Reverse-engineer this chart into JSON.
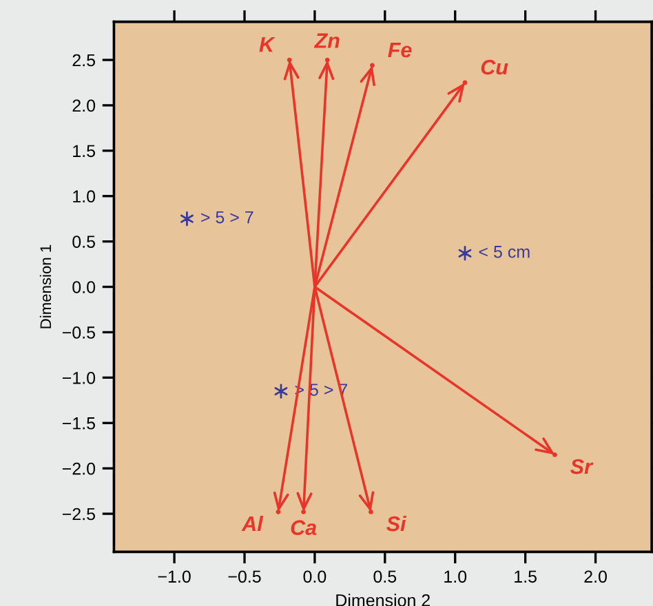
{
  "chart_data": {
    "type": "scatter",
    "xlabel": "Dimension 2",
    "ylabel": "Dimension 1",
    "xlim": [
      -1.43,
      2.4
    ],
    "ylim": [
      -2.92,
      2.92
    ],
    "xticks": [
      {
        "value": -1.0,
        "label": "−1.0"
      },
      {
        "value": -0.5,
        "label": "−0.5"
      },
      {
        "value": 0,
        "label": "0.0"
      },
      0.5,
      {
        "value": 1,
        "label": "1.0"
      },
      1.5,
      {
        "value": 2,
        "label": "2.0"
      }
    ],
    "yticks": [
      {
        "value": -2.5,
        "label": "−2.5"
      },
      {
        "value": -2.0,
        "label": "−2.0"
      },
      {
        "value": -1.5,
        "label": "−1.5"
      },
      {
        "value": -1.0,
        "label": "−1.0"
      },
      {
        "value": -0.5,
        "label": "−0.5"
      },
      {
        "value": 0,
        "label": "0.0"
      },
      0.5,
      {
        "value": 1,
        "label": "1.0"
      },
      1.5,
      {
        "value": 2,
        "label": "2.0"
      },
      2.5
    ],
    "marker": "cross",
    "series": [
      {
        "name": "> 5 > 7",
        "color": "#3a3a9a",
        "x": [
          -0.91
        ],
        "values": [
          0.75
        ]
      },
      {
        "name": "< 5 cm",
        "color": "#3a3a9a",
        "x": [
          1.07
        ],
        "values": [
          0.37
        ]
      },
      {
        "name": "> 5 > 7",
        "color": "#3a3a9a",
        "x": [
          -0.24
        ],
        "values": [
          -1.15
        ]
      },
      {
        "line_style": "solid",
        "marker": "circle",
        "color": "#e8352a",
        "x": [
          -0.18,
          0.09,
          0.41,
          1.07,
          1.71,
          0.4,
          -0.26,
          -0.08
        ],
        "values": [
          2.5,
          2.5,
          2.44,
          2.25,
          -1.85,
          -2.48,
          -2.48,
          -2.48
        ]
      }
    ],
    "annotations": [
      {
        "text": "K",
        "x": -0.18,
        "y": 2.5
      },
      {
        "text": "Zn",
        "x": 0.09,
        "y": 2.5
      },
      {
        "text": "Fe",
        "x": 0.41,
        "y": 2.44
      },
      {
        "text": "Cu",
        "x": 1.07,
        "y": 2.25
      },
      {
        "text": "Sr",
        "x": 1.71,
        "y": -1.85
      },
      {
        "text": "Si",
        "x": 0.4,
        "y": -2.48
      },
      {
        "text": "Al",
        "x": -0.26,
        "y": -2.48
      },
      {
        "text": "Ca",
        "x": -0.08,
        "y": -2.48
      }
    ]
  }
}
